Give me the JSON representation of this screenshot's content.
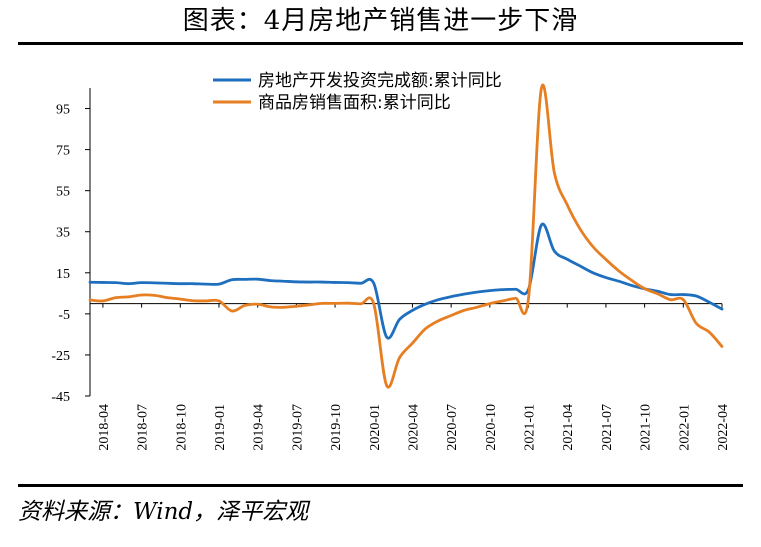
{
  "title": "图表：4月房地产销售进一步下滑",
  "source": "资料来源：Wind，泽平宏观",
  "chart_data": {
    "type": "line",
    "title": "图表：4月房地产销售进一步下滑",
    "xlabel": "",
    "ylabel": "",
    "ylim": [
      -45,
      105
    ],
    "yticks": [
      95,
      75,
      55,
      35,
      15,
      -5,
      -25,
      -45
    ],
    "ytick_labels": [
      "95",
      "75",
      "55",
      "35",
      "15",
      "-5",
      "-25",
      "-45"
    ],
    "xtick_labels": [
      "2018-04",
      "2018-07",
      "2018-10",
      "2019-01",
      "2019-04",
      "2019-07",
      "2019-10",
      "2020-01",
      "2020-04",
      "2020-07",
      "2020-10",
      "2021-01",
      "2021-04",
      "2021-07",
      "2021-10",
      "2022-01",
      "2022-04"
    ],
    "grid": false,
    "legend_position": "top",
    "x": [
      "2018-03",
      "2018-04",
      "2018-05",
      "2018-06",
      "2018-07",
      "2018-08",
      "2018-09",
      "2018-10",
      "2018-11",
      "2018-12",
      "2019-01",
      "2019-02",
      "2019-03",
      "2019-04",
      "2019-05",
      "2019-06",
      "2019-07",
      "2019-08",
      "2019-09",
      "2019-10",
      "2019-11",
      "2019-12",
      "2020-01",
      "2020-02",
      "2020-03",
      "2020-04",
      "2020-05",
      "2020-06",
      "2020-07",
      "2020-08",
      "2020-09",
      "2020-10",
      "2020-11",
      "2020-12",
      "2021-01",
      "2021-02",
      "2021-03",
      "2021-04",
      "2021-05",
      "2021-06",
      "2021-07",
      "2021-08",
      "2021-09",
      "2021-10",
      "2021-11",
      "2021-12",
      "2022-01",
      "2022-02",
      "2022-03",
      "2022-04"
    ],
    "series": [
      {
        "name": "房地产开发投资完成额:累计同比",
        "color": "#1f6fbf",
        "values": [
          10.4,
          10.3,
          10.2,
          9.7,
          10.2,
          10.1,
          9.9,
          9.7,
          9.7,
          9.5,
          9.5,
          11.6,
          11.8,
          11.9,
          11.2,
          10.9,
          10.6,
          10.5,
          10.5,
          10.3,
          10.2,
          9.9,
          9.9,
          -16.3,
          -7.7,
          -3.3,
          -0.3,
          1.9,
          3.4,
          4.6,
          5.6,
          6.3,
          6.8,
          7.0,
          7.0,
          38.3,
          25.6,
          21.6,
          18.3,
          15.0,
          12.7,
          10.9,
          8.8,
          7.2,
          6.0,
          4.4,
          4.4,
          3.7,
          0.7,
          -2.7
        ]
      },
      {
        "name": "商品房销售面积:累计同比",
        "color": "#e67e22",
        "values": [
          1.8,
          1.3,
          2.9,
          3.3,
          4.2,
          4.0,
          2.9,
          2.2,
          1.4,
          1.3,
          1.3,
          -3.6,
          -0.9,
          -0.3,
          -1.6,
          -1.8,
          -1.3,
          -0.6,
          0.1,
          0.1,
          0.2,
          -0.1,
          -0.1,
          -39.9,
          -26.3,
          -19.3,
          -12.3,
          -8.4,
          -5.8,
          -3.3,
          -1.8,
          0.0,
          1.3,
          2.6,
          2.6,
          104.9,
          63.8,
          48.1,
          36.3,
          27.7,
          21.5,
          15.9,
          11.3,
          7.3,
          4.8,
          1.9,
          1.9,
          -9.6,
          -13.8,
          -20.9
        ]
      }
    ]
  }
}
